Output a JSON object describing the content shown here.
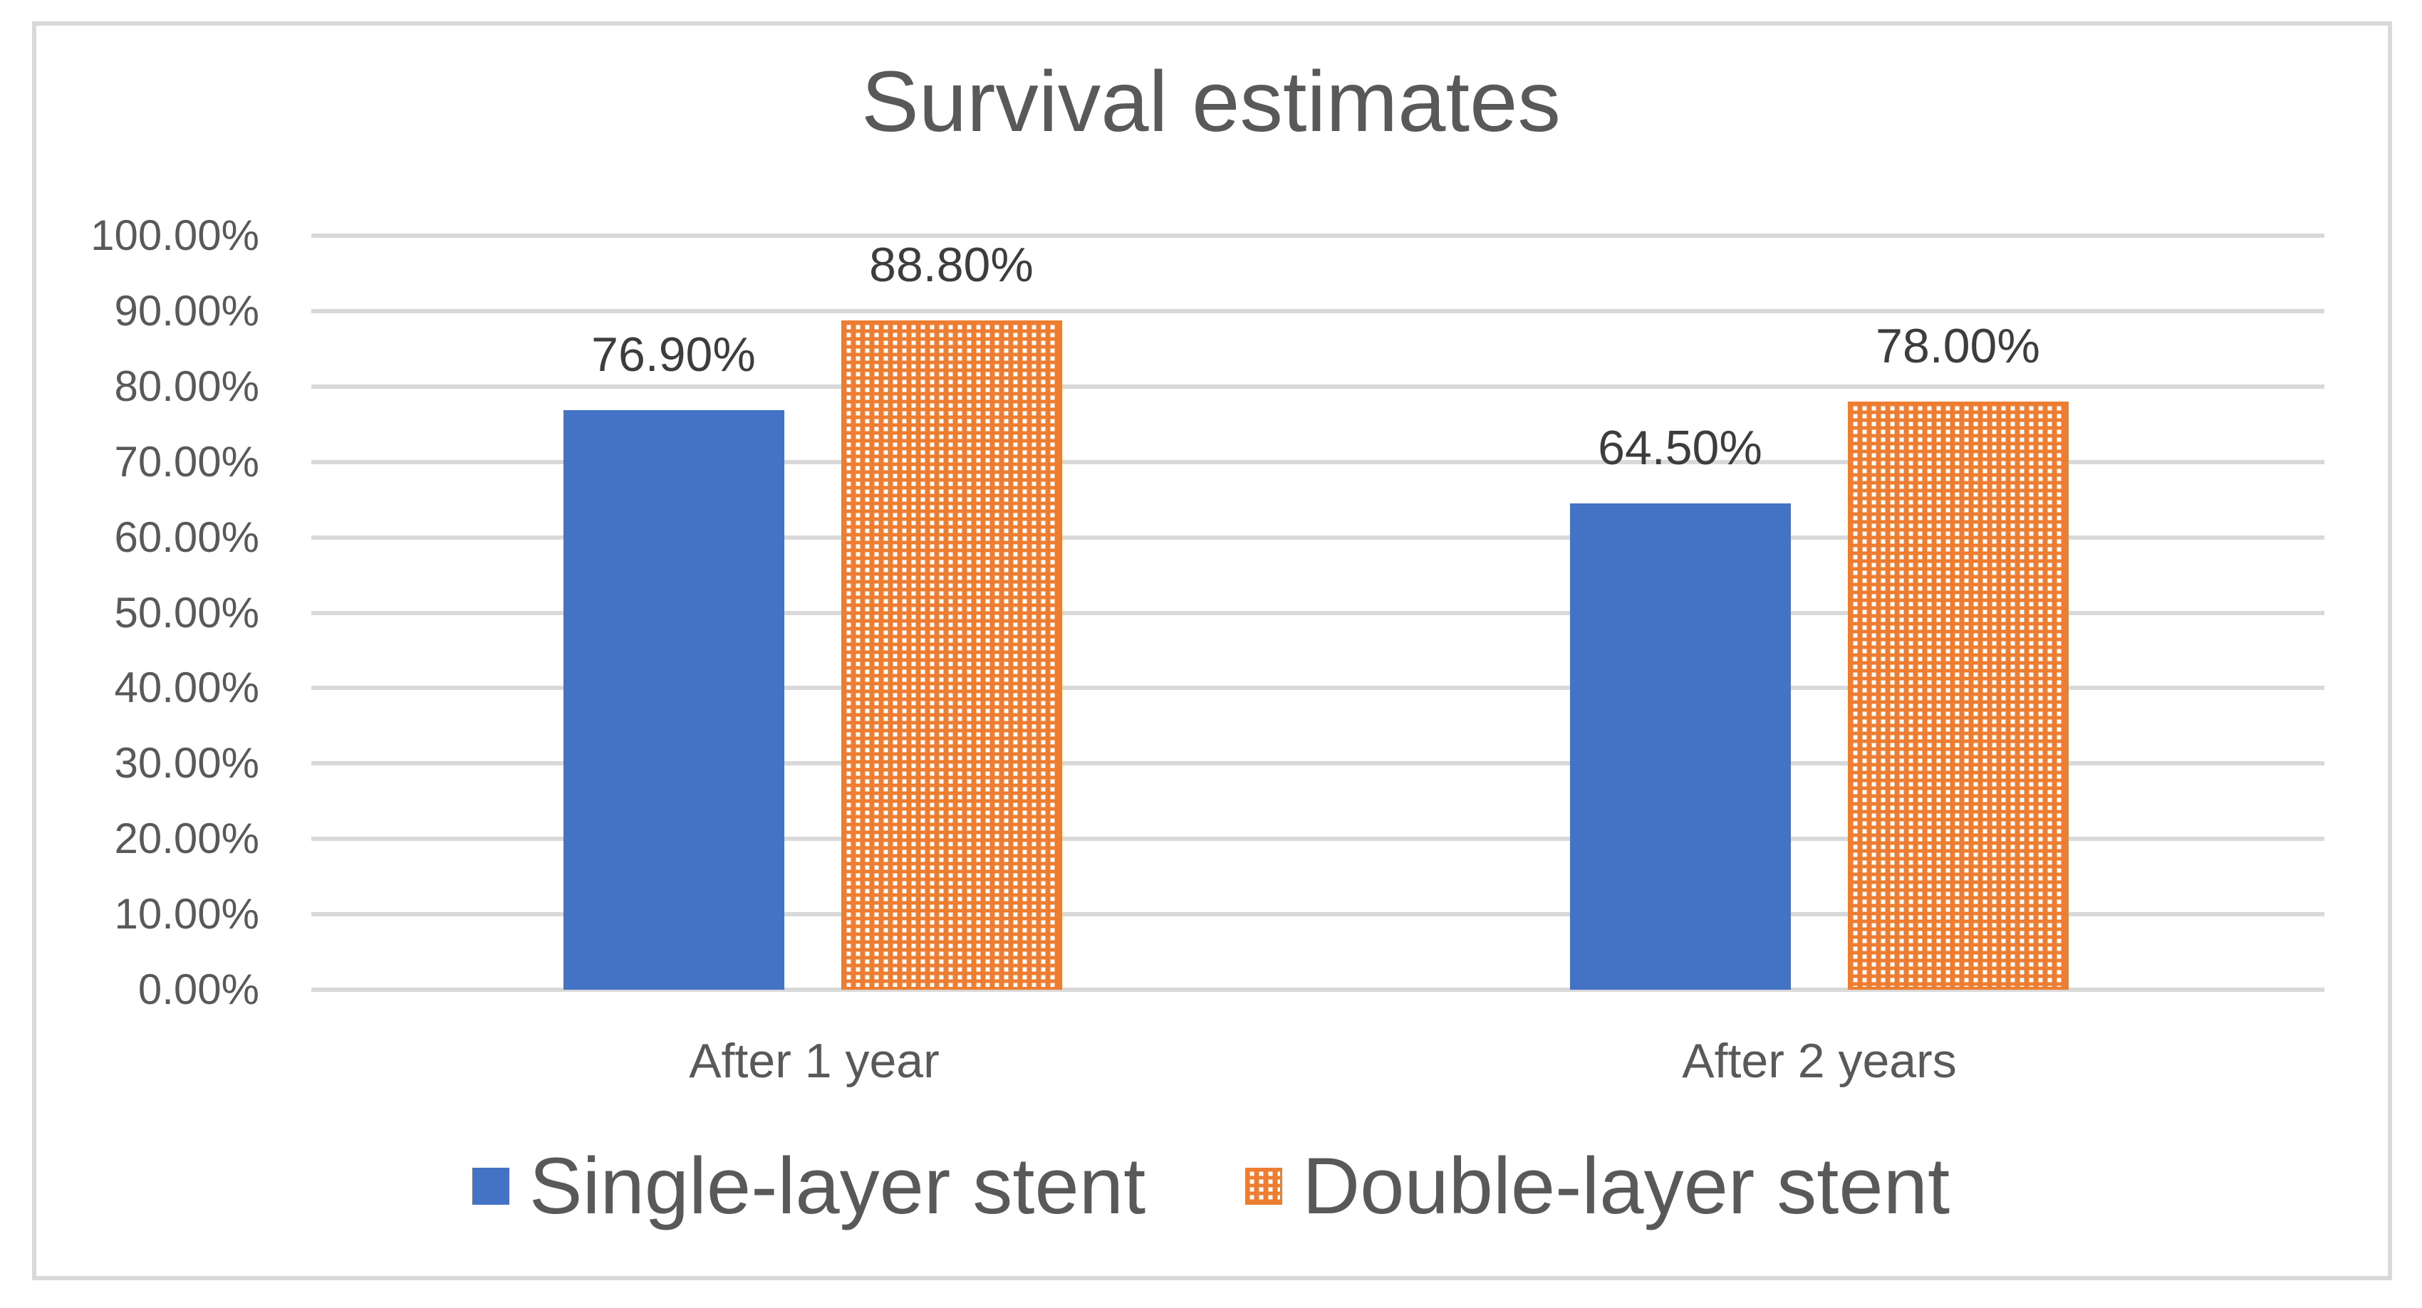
{
  "chart_data": {
    "type": "bar",
    "title": "Survival estimates",
    "categories": [
      "After 1 year",
      "After 2 years"
    ],
    "series": [
      {
        "name": "Single-layer stent",
        "color": "#4472C4",
        "fill_style": "solid",
        "values": [
          76.9,
          64.5
        ],
        "data_labels": [
          "76.90%",
          "64.50%"
        ]
      },
      {
        "name": "Double-layer stent",
        "color": "#ED7D31",
        "fill_style": "dotted-pattern-white-squares",
        "values": [
          88.8,
          78.0
        ],
        "data_labels": [
          "88.80%",
          "78.00%"
        ]
      }
    ],
    "y_axis": {
      "min": 0,
      "max": 100,
      "step": 10,
      "tick_labels": [
        "0.00%",
        "10.00%",
        "20.00%",
        "30.00%",
        "40.00%",
        "50.00%",
        "60.00%",
        "70.00%",
        "80.00%",
        "90.00%",
        "100.00%"
      ]
    },
    "xlabel": "",
    "ylabel": "",
    "grid": "horizontal",
    "legend_position": "bottom",
    "colors": {
      "axis_text": "#595959",
      "data_label_text": "#3d3d3d",
      "title_text": "#595959",
      "gridline": "#d9d9d9",
      "chart_border": "#d9d9d9",
      "background": "#ffffff"
    }
  }
}
